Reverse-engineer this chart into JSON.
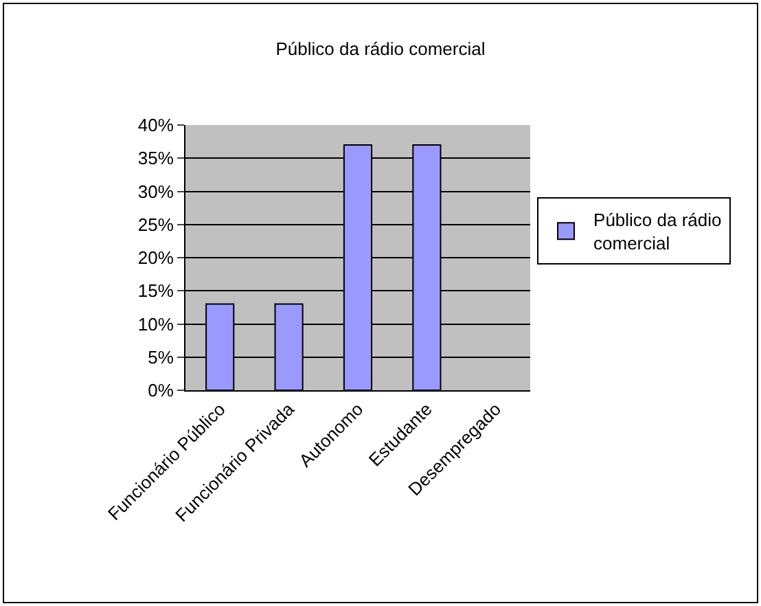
{
  "chart_data": {
    "type": "bar",
    "title": "Público da rádio comercial",
    "categories": [
      "Funcionário Público",
      "Funcionário Privada",
      "Autonomo",
      "Estudante",
      "Desempregado"
    ],
    "series": [
      {
        "name": "Público da rádio comercial",
        "color": "#9999ff",
        "values": [
          13,
          13,
          37,
          37,
          0
        ]
      }
    ],
    "ylim": [
      0,
      40
    ],
    "yticks": [
      {
        "value": 0,
        "label": "0%"
      },
      {
        "value": 5,
        "label": "5%"
      },
      {
        "value": 10,
        "label": "10%"
      },
      {
        "value": 15,
        "label": "15%"
      },
      {
        "value": 20,
        "label": "20%"
      },
      {
        "value": 25,
        "label": "25%"
      },
      {
        "value": 30,
        "label": "30%"
      },
      {
        "value": 35,
        "label": "35%"
      },
      {
        "value": 40,
        "label": "40%"
      }
    ],
    "grid": "y",
    "legend": "right"
  }
}
